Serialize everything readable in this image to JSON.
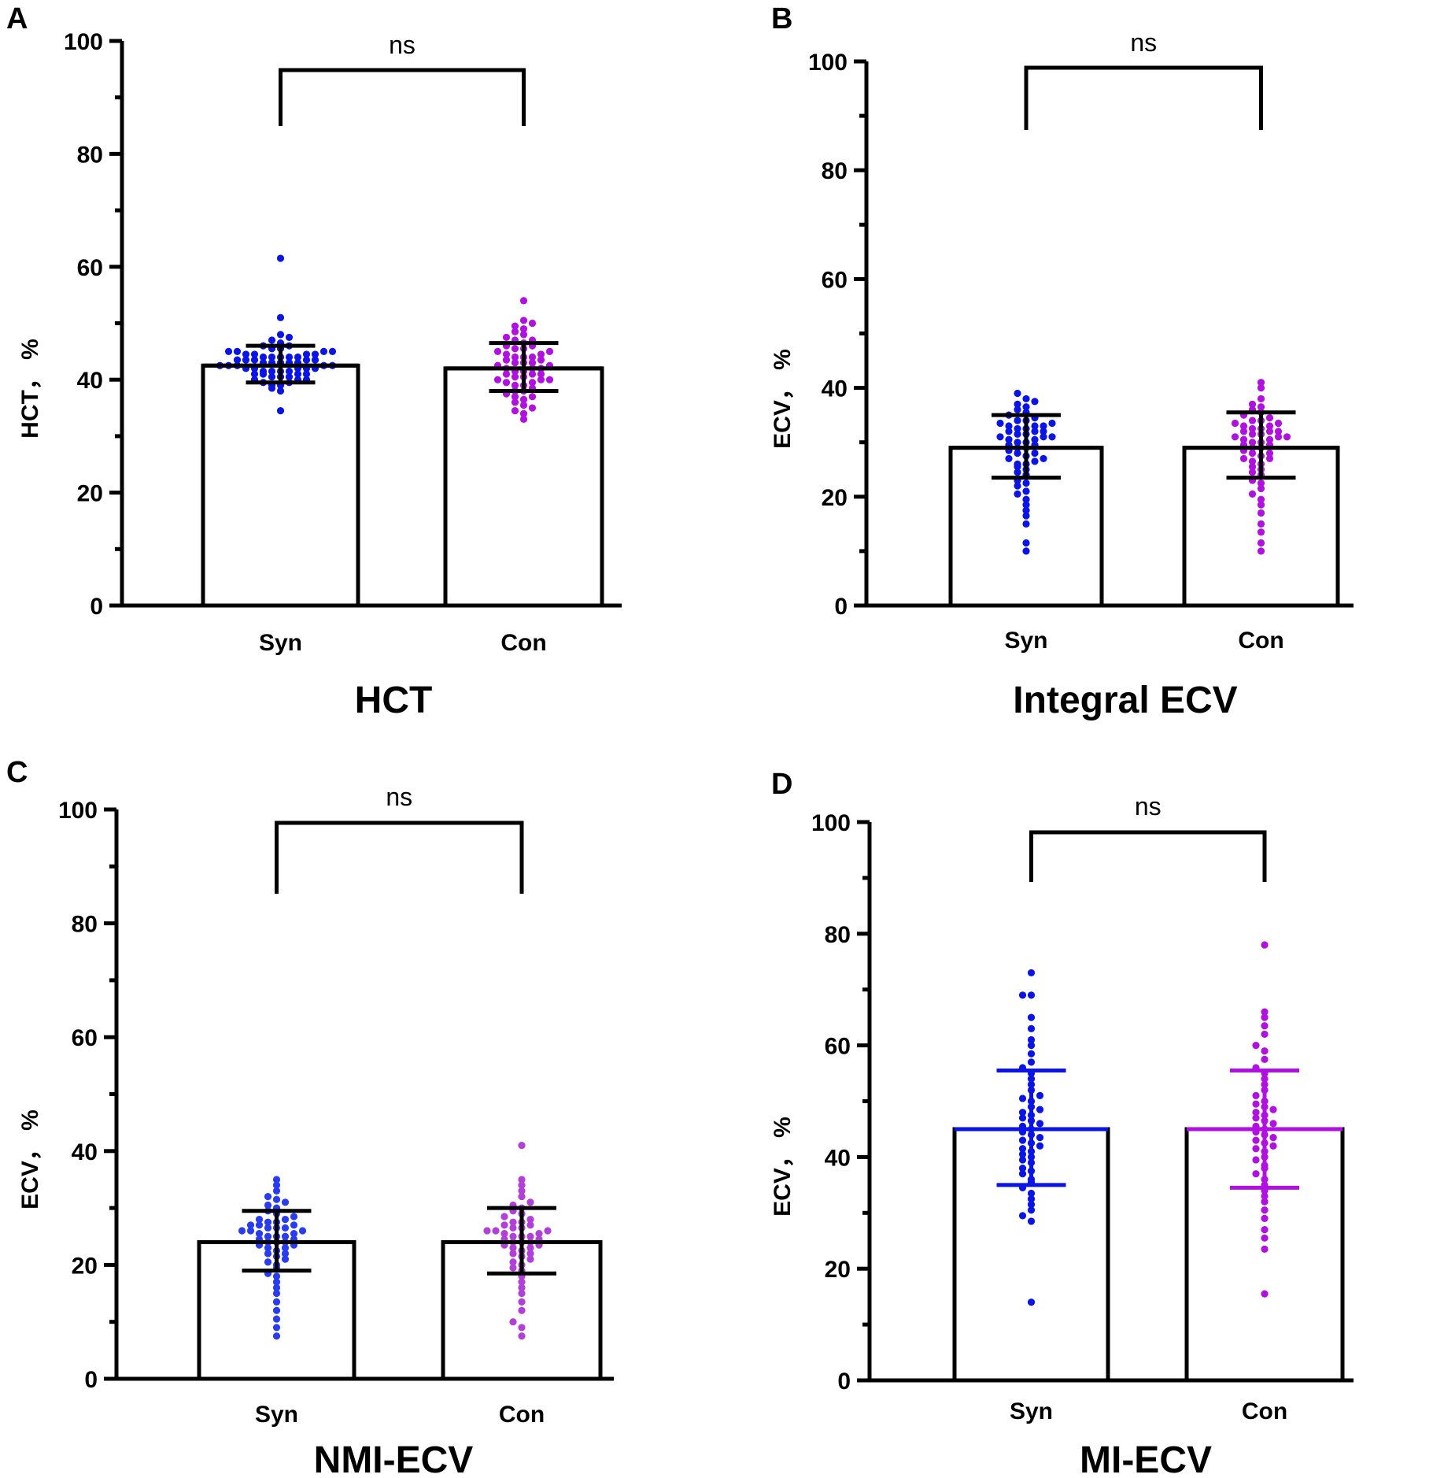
{
  "chart_data": [
    {
      "type": "bar",
      "panel": "A",
      "title": "HCT",
      "xlabel": "",
      "ylabel": "HCT， %",
      "ylim": [
        0,
        100
      ],
      "yticks": [
        0,
        20,
        40,
        60,
        80,
        100
      ],
      "categories": [
        "Syn",
        "Con"
      ],
      "values": [
        42.5,
        42.0
      ],
      "error": [
        [
          39.5,
          46.0
        ],
        [
          38.0,
          46.5
        ]
      ],
      "significance": "ns",
      "colors": [
        "#0a14e6",
        "#b010e0"
      ],
      "errorbar_colors": [
        "#000000",
        "#000000"
      ],
      "points": [
        [
          34.5,
          38,
          38.5,
          39,
          39,
          39.5,
          39.5,
          40,
          40,
          40,
          40.5,
          40.5,
          40.5,
          41,
          41,
          41,
          41,
          41.5,
          41.5,
          41.5,
          41.5,
          42,
          42,
          42,
          42,
          42,
          42.5,
          42.5,
          42.5,
          42.5,
          42.5,
          43,
          43,
          43,
          43,
          43,
          43.5,
          43.5,
          43.5,
          43.5,
          43.5,
          44,
          44,
          44,
          44,
          44,
          44.5,
          44.5,
          44.5,
          44.5,
          45,
          45,
          45,
          45,
          45.5,
          45.5,
          46,
          46,
          46.5,
          47,
          47.5,
          48,
          51,
          61.5
        ],
        [
          33,
          34,
          34.5,
          35,
          35.5,
          36,
          36.5,
          37,
          37,
          37.5,
          38,
          38,
          38.5,
          39,
          39,
          39.5,
          39.5,
          40,
          40,
          40,
          40.5,
          40.5,
          41,
          41,
          41,
          41.5,
          41.5,
          42,
          42,
          42,
          42.5,
          42.5,
          43,
          43,
          43,
          43.5,
          43.5,
          44,
          44,
          44,
          44.5,
          44.5,
          45,
          45,
          45.5,
          45.5,
          46,
          46,
          46.5,
          47,
          47,
          47.5,
          48,
          48.5,
          49,
          49.5,
          50,
          50.5,
          54
        ]
      ]
    },
    {
      "type": "bar",
      "panel": "B",
      "title": "Integral ECV",
      "xlabel": "",
      "ylabel": "ECV， %",
      "ylim": [
        0,
        100
      ],
      "yticks": [
        0,
        20,
        40,
        60,
        80,
        100
      ],
      "categories": [
        "Syn",
        "Con"
      ],
      "values": [
        29.0,
        29.0
      ],
      "error": [
        [
          23.5,
          35.0
        ],
        [
          23.5,
          35.5
        ]
      ],
      "significance": "ns",
      "colors": [
        "#0a14e6",
        "#b010e0"
      ],
      "errorbar_colors": [
        "#000000",
        "#000000"
      ],
      "points": [
        [
          10,
          11.5,
          15,
          16.5,
          17.5,
          18.5,
          19.5,
          20.5,
          21,
          22,
          22.5,
          23,
          24,
          24.5,
          25,
          25.5,
          26,
          26,
          26.5,
          27,
          27,
          27.5,
          28,
          28,
          28.5,
          29,
          29,
          29.5,
          29.5,
          30,
          30,
          30.5,
          30.5,
          31,
          31,
          31,
          31.5,
          31.5,
          32,
          32,
          32,
          32.5,
          32.5,
          33,
          33,
          33,
          33.5,
          33.5,
          34,
          34,
          34.5,
          35,
          35.5,
          36,
          36.5,
          37,
          37.5,
          38,
          39
        ],
        [
          10,
          11.5,
          13.5,
          15,
          17,
          18.5,
          19.5,
          20.5,
          21.5,
          22.5,
          23,
          24,
          24.5,
          25,
          25.5,
          26,
          26.5,
          27,
          27,
          27.5,
          28,
          28,
          28.5,
          29,
          29,
          29.5,
          29.5,
          30,
          30,
          30.5,
          30.5,
          31,
          31,
          31,
          31.5,
          31.5,
          32,
          32,
          32,
          32.5,
          32.5,
          33,
          33,
          33.5,
          33.5,
          34,
          34,
          34.5,
          35,
          35.5,
          36,
          36.5,
          37,
          38,
          40,
          41
        ]
      ]
    },
    {
      "type": "bar",
      "panel": "C",
      "title": "NMI-ECV",
      "xlabel": "",
      "ylabel": "ECV， %",
      "ylim": [
        0,
        100
      ],
      "yticks": [
        0,
        20,
        40,
        60,
        80,
        100
      ],
      "categories": [
        "Syn",
        "Con"
      ],
      "values": [
        24.0,
        24.0
      ],
      "error": [
        [
          19.0,
          29.5
        ],
        [
          18.5,
          30.0
        ]
      ],
      "significance": "ns",
      "colors": [
        "#2a3cf0",
        "#b040d8"
      ],
      "errorbar_colors": [
        "#000000",
        "#000000"
      ],
      "points": [
        [
          7.5,
          9,
          10.5,
          12,
          13.5,
          15,
          16,
          17,
          18,
          18.5,
          19.5,
          20,
          20.5,
          21,
          21.5,
          22,
          22,
          22.5,
          23,
          23,
          23.5,
          23.5,
          24,
          24,
          24,
          24.5,
          24.5,
          25,
          25,
          25,
          25.5,
          25.5,
          26,
          26,
          26,
          26.5,
          26.5,
          26.5,
          27,
          27,
          27,
          27.5,
          27.5,
          28,
          28,
          28.5,
          29,
          29.5,
          30,
          30.5,
          31,
          31.5,
          32,
          33,
          34,
          35
        ],
        [
          7.5,
          9,
          10,
          12,
          13.5,
          15,
          16,
          17,
          18,
          19,
          19.5,
          20,
          20.5,
          21,
          21.5,
          22,
          22,
          22.5,
          23,
          23,
          23.5,
          23.5,
          24,
          24,
          24,
          24.5,
          24.5,
          25,
          25,
          25,
          25.5,
          25.5,
          26,
          26,
          26,
          26.5,
          26.5,
          27,
          27,
          27.5,
          27.5,
          28,
          28.5,
          29,
          29.5,
          30,
          30.5,
          31,
          32,
          33,
          34,
          35,
          41
        ]
      ]
    },
    {
      "type": "bar",
      "panel": "D",
      "title": "MI-ECV",
      "xlabel": "",
      "ylabel": "ECV， %",
      "ylim": [
        0,
        100
      ],
      "yticks": [
        0,
        20,
        40,
        60,
        80,
        100
      ],
      "categories": [
        "Syn",
        "Con"
      ],
      "values": [
        45.0,
        45.0
      ],
      "error": [
        [
          35.0,
          55.5
        ],
        [
          34.5,
          55.5
        ]
      ],
      "significance": "ns",
      "colors": [
        "#0a14e6",
        "#b010e0"
      ],
      "errorbar_colors": [
        "#0a14e6",
        "#b010e0"
      ],
      "points": [
        [
          14,
          28.5,
          29.5,
          30.5,
          31.5,
          32.5,
          33.5,
          34.5,
          35.5,
          36,
          37,
          37.5,
          38,
          39,
          39.5,
          40,
          40.5,
          41,
          41.5,
          42,
          42.5,
          43,
          43.5,
          44,
          44.5,
          45,
          45.5,
          46,
          46.5,
          47,
          47.5,
          48,
          48.5,
          49,
          50,
          50.5,
          51,
          52,
          53,
          54,
          55,
          56,
          57,
          58.5,
          60,
          61,
          63,
          65,
          69,
          69,
          73
        ],
        [
          15.5,
          23.5,
          25.5,
          27,
          29,
          30.5,
          32,
          33,
          34,
          35,
          36,
          37,
          38,
          38.5,
          39.5,
          40,
          41,
          41.5,
          42,
          42.5,
          43,
          43.5,
          44,
          44.5,
          45,
          45.5,
          46,
          46.5,
          47,
          47.5,
          48,
          48.5,
          49,
          49.5,
          50,
          51,
          52,
          53,
          54,
          55,
          56,
          57.5,
          59,
          60,
          62,
          63.5,
          65,
          66,
          78
        ]
      ]
    }
  ]
}
